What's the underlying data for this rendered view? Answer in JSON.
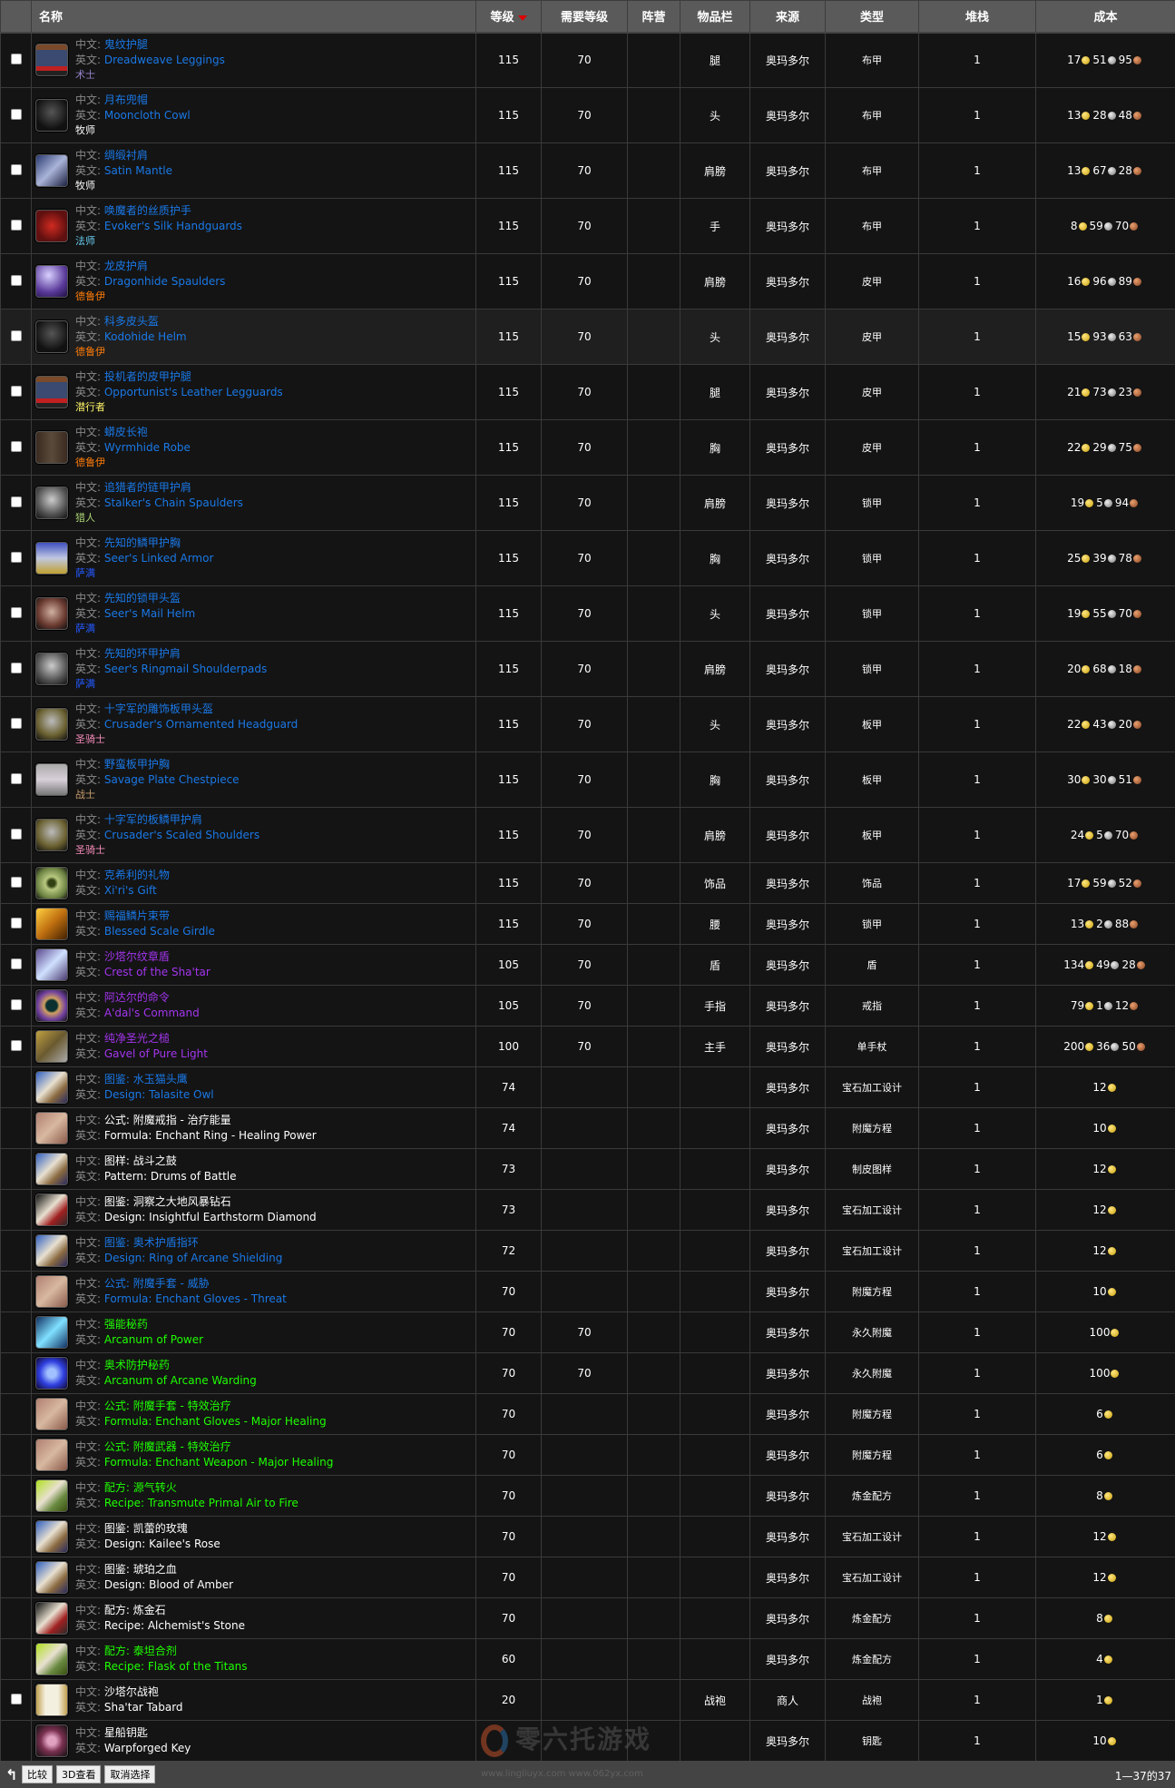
{
  "header": {
    "check": "",
    "name": "名称",
    "level": "等级",
    "req": "需要等级",
    "faction": "阵营",
    "slot": "物品栏",
    "source": "来源",
    "type": "类型",
    "stack": "堆栈",
    "cost": "成本",
    "sort_icon": "sort-desc-triangle"
  },
  "labels": {
    "cn": "中文: ",
    "en": "英文: "
  },
  "colors": {
    "rare": "#1a78e6",
    "epic": "#a335ee",
    "uncommon": "#1eff00",
    "common": "#ffffff",
    "header_bg": "#5a5a5a",
    "row_bg": "#141414",
    "hover_bg": "#1f1f1f"
  },
  "class_colors": {
    "术士": "#9482c9",
    "牧师": "#ffffff",
    "法师": "#69ccf0",
    "德鲁伊": "#ff7d0a",
    "潜行者": "#fff569",
    "猎人": "#abd473",
    "萨满": "#2459ff",
    "圣骑士": "#f58cba",
    "战士": "#c79c6e"
  },
  "items": [
    {
      "cn": "鬼纹护腿",
      "en": "Dreadweave Leggings",
      "cls": "术士",
      "q": "rare",
      "icon": "leggings-icon",
      "level": "115",
      "req": "70",
      "slot": "腿",
      "source": "奥玛多尔",
      "type": "布甲",
      "stack": "1",
      "cost": {
        "gold": 17,
        "silver": 51,
        "copper": 95
      },
      "check": true
    },
    {
      "cn": "月布兜帽",
      "en": "Mooncloth Cowl",
      "cls": "牧师",
      "q": "rare",
      "icon": "hood-icon",
      "level": "115",
      "req": "70",
      "slot": "头",
      "source": "奥玛多尔",
      "type": "布甲",
      "stack": "1",
      "cost": {
        "gold": 13,
        "silver": 28,
        "copper": 48
      },
      "check": true
    },
    {
      "cn": "绸缎衬肩",
      "en": "Satin Mantle",
      "cls": "牧师",
      "q": "rare",
      "icon": "mantle-icon",
      "level": "115",
      "req": "70",
      "slot": "肩膀",
      "source": "奥玛多尔",
      "type": "布甲",
      "stack": "1",
      "cost": {
        "gold": 13,
        "silver": 67,
        "copper": 28
      },
      "check": true
    },
    {
      "cn": "唤魔者的丝质护手",
      "en": "Evoker's Silk Handguards",
      "cls": "法师",
      "q": "rare",
      "icon": "gloves-icon",
      "level": "115",
      "req": "70",
      "slot": "手",
      "source": "奥玛多尔",
      "type": "布甲",
      "stack": "1",
      "cost": {
        "gold": 8,
        "silver": 59,
        "copper": 70
      },
      "check": true
    },
    {
      "cn": "龙皮护肩",
      "en": "Dragonhide Spaulders",
      "cls": "德鲁伊",
      "q": "rare",
      "icon": "spaulders-icon",
      "level": "115",
      "req": "70",
      "slot": "肩膀",
      "source": "奥玛多尔",
      "type": "皮甲",
      "stack": "1",
      "cost": {
        "gold": 16,
        "silver": 96,
        "copper": 89
      },
      "check": true
    },
    {
      "cn": "科多皮头盔",
      "en": "Kodohide Helm",
      "cls": "德鲁伊",
      "q": "rare",
      "icon": "hood-icon",
      "level": "115",
      "req": "70",
      "slot": "头",
      "source": "奥玛多尔",
      "type": "皮甲",
      "stack": "1",
      "cost": {
        "gold": 15,
        "silver": 93,
        "copper": 63
      },
      "check": true,
      "hover": true
    },
    {
      "cn": "投机者的皮甲护腿",
      "en": "Opportunist's Leather Legguards",
      "cls": "潜行者",
      "q": "rare",
      "icon": "leggings-icon",
      "level": "115",
      "req": "70",
      "slot": "腿",
      "source": "奥玛多尔",
      "type": "皮甲",
      "stack": "1",
      "cost": {
        "gold": 21,
        "silver": 73,
        "copper": 23
      },
      "check": true
    },
    {
      "cn": "蟒皮长袍",
      "en": "Wyrmhide Robe",
      "cls": "德鲁伊",
      "q": "rare",
      "icon": "robe-icon",
      "level": "115",
      "req": "70",
      "slot": "胸",
      "source": "奥玛多尔",
      "type": "皮甲",
      "stack": "1",
      "cost": {
        "gold": 22,
        "silver": 29,
        "copper": 75
      },
      "check": true
    },
    {
      "cn": "追猎者的链甲护肩",
      "en": "Stalker's Chain Spaulders",
      "cls": "猎人",
      "q": "rare",
      "icon": "shoulder-plate-icon",
      "level": "115",
      "req": "70",
      "slot": "肩膀",
      "source": "奥玛多尔",
      "type": "锁甲",
      "stack": "1",
      "cost": {
        "gold": 19,
        "silver": 5,
        "copper": 94
      },
      "check": true
    },
    {
      "cn": "先知的鳞甲护胸",
      "en": "Seer's Linked Armor",
      "cls": "萨满",
      "q": "rare",
      "icon": "chest-armor-icon",
      "level": "115",
      "req": "70",
      "slot": "胸",
      "source": "奥玛多尔",
      "type": "锁甲",
      "stack": "1",
      "cost": {
        "gold": 25,
        "silver": 39,
        "copper": 78
      },
      "check": true
    },
    {
      "cn": "先知的锁甲头盔",
      "en": "Seer's Mail Helm",
      "cls": "萨满",
      "q": "rare",
      "icon": "helm-icon",
      "level": "115",
      "req": "70",
      "slot": "头",
      "source": "奥玛多尔",
      "type": "锁甲",
      "stack": "1",
      "cost": {
        "gold": 19,
        "silver": 55,
        "copper": 70
      },
      "check": true
    },
    {
      "cn": "先知的环甲护肩",
      "en": "Seer's Ringmail Shoulderpads",
      "cls": "萨满",
      "q": "rare",
      "icon": "shoulder-plate-icon",
      "level": "115",
      "req": "70",
      "slot": "肩膀",
      "source": "奥玛多尔",
      "type": "锁甲",
      "stack": "1",
      "cost": {
        "gold": 20,
        "silver": 68,
        "copper": 18
      },
      "check": true
    },
    {
      "cn": "十字军的雕饰板甲头盔",
      "en": "Crusader's Ornamented Headguard",
      "cls": "圣骑士",
      "q": "rare",
      "icon": "plate-helm-icon",
      "level": "115",
      "req": "70",
      "slot": "头",
      "source": "奥玛多尔",
      "type": "板甲",
      "stack": "1",
      "cost": {
        "gold": 22,
        "silver": 43,
        "copper": 20
      },
      "check": true
    },
    {
      "cn": "野蛮板甲护胸",
      "en": "Savage Plate Chestpiece",
      "cls": "战士",
      "q": "rare",
      "icon": "breastplate-icon",
      "level": "115",
      "req": "70",
      "slot": "胸",
      "source": "奥玛多尔",
      "type": "板甲",
      "stack": "1",
      "cost": {
        "gold": 30,
        "silver": 30,
        "copper": 51
      },
      "check": true
    },
    {
      "cn": "十字军的板鳞甲护肩",
      "en": "Crusader's Scaled Shoulders",
      "cls": "圣骑士",
      "q": "rare",
      "icon": "plate-helm-icon",
      "level": "115",
      "req": "70",
      "slot": "肩膀",
      "source": "奥玛多尔",
      "type": "板甲",
      "stack": "1",
      "cost": {
        "gold": 24,
        "silver": 5,
        "copper": 70
      },
      "check": true
    },
    {
      "cn": "克希利的礼物",
      "en": "Xi'ri's Gift",
      "q": "rare",
      "icon": "jade-disc-icon",
      "level": "115",
      "req": "70",
      "slot": "饰品",
      "source": "奥玛多尔",
      "type": "饰品",
      "stack": "1",
      "cost": {
        "gold": 17,
        "silver": 59,
        "copper": 52
      },
      "check": true
    },
    {
      "cn": "赐福鳞片束带",
      "en": "Blessed Scale Girdle",
      "q": "rare",
      "icon": "belt-icon",
      "level": "115",
      "req": "70",
      "slot": "腰",
      "source": "奥玛多尔",
      "type": "锁甲",
      "stack": "1",
      "cost": {
        "gold": 13,
        "silver": 2,
        "copper": 88
      },
      "check": true
    },
    {
      "cn": "沙塔尔纹章盾",
      "en": "Crest of the Sha'tar",
      "q": "epic",
      "icon": "shield-icon",
      "level": "105",
      "req": "70",
      "slot": "盾",
      "source": "奥玛多尔",
      "type": "盾",
      "stack": "1",
      "cost": {
        "gold": 134,
        "silver": 49,
        "copper": 28
      },
      "check": true
    },
    {
      "cn": "阿达尔的命令",
      "en": "A'dal's Command",
      "q": "epic",
      "icon": "ring-icon",
      "level": "105",
      "req": "70",
      "slot": "手指",
      "source": "奥玛多尔",
      "type": "戒指",
      "stack": "1",
      "cost": {
        "gold": 79,
        "silver": 1,
        "copper": 12
      },
      "check": true
    },
    {
      "cn": "纯净圣光之槌",
      "en": "Gavel of Pure Light",
      "q": "epic",
      "icon": "mace-icon",
      "level": "100",
      "req": "70",
      "slot": "主手",
      "source": "奥玛多尔",
      "type": "单手杖",
      "stack": "1",
      "cost": {
        "gold": 200,
        "silver": 36,
        "copper": 50
      },
      "check": true
    },
    {
      "cn": "图鉴: 水玉猫头鹰",
      "en": "Design: Talasite Owl",
      "q": "rare",
      "icon": "scroll-purple-icon",
      "level": "74",
      "req": "",
      "slot": "",
      "source": "奥玛多尔",
      "type": "宝石加工设计",
      "stack": "1",
      "cost": {
        "gold": 12
      }
    },
    {
      "cn": "公式: 附魔戒指 - 治疗能量",
      "en": "Formula: Enchant Ring - Healing Power",
      "q": "common",
      "icon": "formula-icon",
      "level": "74",
      "req": "",
      "slot": "",
      "source": "奥玛多尔",
      "type": "附魔方程",
      "stack": "1",
      "cost": {
        "gold": 10
      }
    },
    {
      "cn": "图样: 战斗之鼓",
      "en": "Pattern: Drums of Battle",
      "q": "common",
      "icon": "scroll-purple-icon",
      "level": "73",
      "req": "",
      "slot": "",
      "source": "奥玛多尔",
      "type": "制皮图样",
      "stack": "1",
      "cost": {
        "gold": 12
      }
    },
    {
      "cn": "图鉴: 洞察之大地风暴钻石",
      "en": "Design: Insightful Earthstorm Diamond",
      "q": "common",
      "icon": "scroll-red-icon",
      "level": "73",
      "req": "",
      "slot": "",
      "source": "奥玛多尔",
      "type": "宝石加工设计",
      "stack": "1",
      "cost": {
        "gold": 12
      }
    },
    {
      "cn": "图鉴: 奥术护盾指环",
      "en": "Design: Ring of Arcane Shielding",
      "q": "rare",
      "icon": "scroll-purple-icon",
      "level": "72",
      "req": "",
      "slot": "",
      "source": "奥玛多尔",
      "type": "宝石加工设计",
      "stack": "1",
      "cost": {
        "gold": 12
      }
    },
    {
      "cn": "公式: 附魔手套 - 威胁",
      "en": "Formula: Enchant Gloves - Threat",
      "q": "rare",
      "icon": "formula-icon",
      "level": "70",
      "req": "",
      "slot": "",
      "source": "奥玛多尔",
      "type": "附魔方程",
      "stack": "1",
      "cost": {
        "gold": 10
      }
    },
    {
      "cn": "强能秘药",
      "en": "Arcanum of Power",
      "q": "uncommon",
      "icon": "lightning-icon",
      "level": "70",
      "req": "70",
      "slot": "",
      "source": "奥玛多尔",
      "type": "永久附魔",
      "stack": "1",
      "cost": {
        "gold": 100
      }
    },
    {
      "cn": "奥术防护秘药",
      "en": "Arcanum of Arcane Warding",
      "q": "uncommon",
      "icon": "arcane-shield-icon",
      "level": "70",
      "req": "70",
      "slot": "",
      "source": "奥玛多尔",
      "type": "永久附魔",
      "stack": "1",
      "cost": {
        "gold": 100
      }
    },
    {
      "cn": "公式: 附魔手套 - 特效治疗",
      "en": "Formula: Enchant Gloves - Major Healing",
      "q": "uncommon",
      "icon": "formula-icon",
      "level": "70",
      "req": "",
      "slot": "",
      "source": "奥玛多尔",
      "type": "附魔方程",
      "stack": "1",
      "cost": {
        "gold": 6
      }
    },
    {
      "cn": "公式: 附魔武器 - 特效治疗",
      "en": "Formula: Enchant Weapon - Major Healing",
      "q": "uncommon",
      "icon": "formula-icon",
      "level": "70",
      "req": "",
      "slot": "",
      "source": "奥玛多尔",
      "type": "附魔方程",
      "stack": "1",
      "cost": {
        "gold": 6
      }
    },
    {
      "cn": "配方: 源气转火",
      "en": "Recipe: Transmute Primal Air to Fire",
      "q": "uncommon",
      "icon": "scroll-green-icon",
      "level": "70",
      "req": "",
      "slot": "",
      "source": "奥玛多尔",
      "type": "炼金配方",
      "stack": "1",
      "cost": {
        "gold": 8
      }
    },
    {
      "cn": "图鉴: 凯蕾的玫瑰",
      "en": "Design: Kailee's Rose",
      "q": "common",
      "icon": "scroll-purple-icon",
      "level": "70",
      "req": "",
      "slot": "",
      "source": "奥玛多尔",
      "type": "宝石加工设计",
      "stack": "1",
      "cost": {
        "gold": 12
      }
    },
    {
      "cn": "图鉴: 琥珀之血",
      "en": "Design: Blood of Amber",
      "q": "common",
      "icon": "scroll-purple-icon",
      "level": "70",
      "req": "",
      "slot": "",
      "source": "奥玛多尔",
      "type": "宝石加工设计",
      "stack": "1",
      "cost": {
        "gold": 12
      }
    },
    {
      "cn": "配方: 炼金石",
      "en": "Recipe: Alchemist's Stone",
      "q": "common",
      "icon": "scroll-red-icon",
      "level": "70",
      "req": "",
      "slot": "",
      "source": "奥玛多尔",
      "type": "炼金配方",
      "stack": "1",
      "cost": {
        "gold": 8
      }
    },
    {
      "cn": "配方: 泰坦合剂",
      "en": "Recipe: Flask of the Titans",
      "q": "uncommon",
      "icon": "scroll-green-icon",
      "level": "60",
      "req": "",
      "slot": "",
      "source": "奥玛多尔",
      "type": "炼金配方",
      "stack": "1",
      "cost": {
        "gold": 4
      }
    },
    {
      "cn": "沙塔尔战袍",
      "en": "Sha'tar Tabard",
      "q": "common",
      "icon": "tabard-icon",
      "level": "20",
      "req": "",
      "slot": "战袍",
      "source": "商人",
      "type": "战袍",
      "stack": "1",
      "cost": {
        "gold": 1
      },
      "check": true
    },
    {
      "cn": "星船钥匙",
      "en": "Warpforged Key",
      "q": "common",
      "icon": "key-icon",
      "level": "",
      "req": "",
      "slot": "",
      "source": "奥玛多尔",
      "type": "钥匙",
      "stack": "1",
      "cost": {
        "gold": 10
      }
    }
  ],
  "footer": {
    "compare": "比较",
    "view3d": "3D查看",
    "deselect": "取消选择",
    "pager": "1—37的37",
    "up_icon": "arrow-up-icon"
  },
  "watermark": {
    "brand": "零六托游戏",
    "urls": "www.lingliuyx.com   www.062yx.com"
  }
}
